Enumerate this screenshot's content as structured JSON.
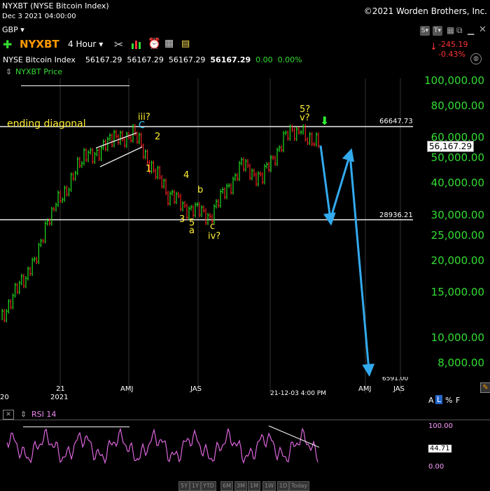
{
  "header": {
    "title": "NYXBT (NYSE Bitcoin Index)",
    "date": "Dec 3 2021 04:00:00",
    "copyright": "©2021 Worden Brothers, Inc.",
    "currency": "GBP",
    "symbol": "NYXBT",
    "interval": "4 Hour",
    "change": "-245.19",
    "change_pct": "-0.43%"
  },
  "quote": {
    "name": "NYSE Bitcoin Index",
    "open": "56167.29",
    "high": "56167.29",
    "low": "56167.29",
    "close": "56167.29",
    "chg": "0.00",
    "chg_pct": "0.00%"
  },
  "price_panel": {
    "label": "NYXBT Price",
    "current_price": "56,167.29",
    "line_high_label": "66647.73",
    "line_low_label": "28936.21",
    "partial_label": "6591.00",
    "crosshair_date": "21-12-03 4:00 PM",
    "y_ticks": [
      "100,000.00",
      "80,000.00",
      "60,000.00",
      "50,000.00",
      "40,000.00",
      "30,000.00",
      "25,000.00",
      "20,000.00",
      "15,000.00",
      "10,000.00",
      "8,000.00"
    ]
  },
  "x_axis": {
    "labels": [
      "20",
      "21",
      "2021",
      "AMJ",
      "JAS",
      "AMJ",
      "JAS"
    ]
  },
  "annotations": {
    "ending_diagonal": "ending diagonal",
    "iii": "iii?",
    "C": "C",
    "two": "2",
    "one": "1",
    "four": "4",
    "b": "b",
    "three": "3",
    "five": "5",
    "a": "a",
    "c": "c",
    "iv": "iv?",
    "five_q": "5?",
    "v_q": "v?"
  },
  "rsi_panel": {
    "label": "RSI 14",
    "current": "44.71",
    "ticks": [
      "100.00",
      "0.00"
    ]
  },
  "scale_buttons": {
    "a": "A",
    "l": "L",
    "pct": "%",
    "f": "F"
  },
  "period_buttons": [
    "5Y",
    "1Y",
    "YTD",
    "6M",
    "3M",
    "1M",
    "1W",
    "1D",
    "Today"
  ],
  "chart_data": {
    "type": "bar",
    "title": "NYXBT (NYSE Bitcoin Index)",
    "xlabel": "",
    "ylabel": "",
    "y_scale": "log",
    "ylim": [
      6591,
      100000
    ],
    "horizontal_lines": [
      66647.73,
      28936.21
    ],
    "series": [
      {
        "name": "NYXBT Price",
        "x": [
          "2020-11",
          "2020-12",
          "2021-01",
          "2021-02",
          "2021-03",
          "2021-04",
          "2021-05",
          "2021-06",
          "2021-07",
          "2021-08",
          "2021-09",
          "2021-10",
          "2021-11",
          "2021-12"
        ],
        "values": [
          12000,
          18000,
          33000,
          50000,
          58000,
          63000,
          36000,
          32000,
          30000,
          47000,
          42000,
          60000,
          65000,
          56167.29
        ]
      }
    ],
    "projection": [
      {
        "x": "2021-12-03",
        "y": 56167.29
      },
      {
        "x": "2022-01",
        "y": 29000
      },
      {
        "x": "2022-02",
        "y": 52000
      },
      {
        "x": "2022-06",
        "y": 7500
      }
    ],
    "rsi": {
      "name": "RSI 14",
      "range": [
        0,
        100
      ],
      "current": 44.71
    }
  }
}
